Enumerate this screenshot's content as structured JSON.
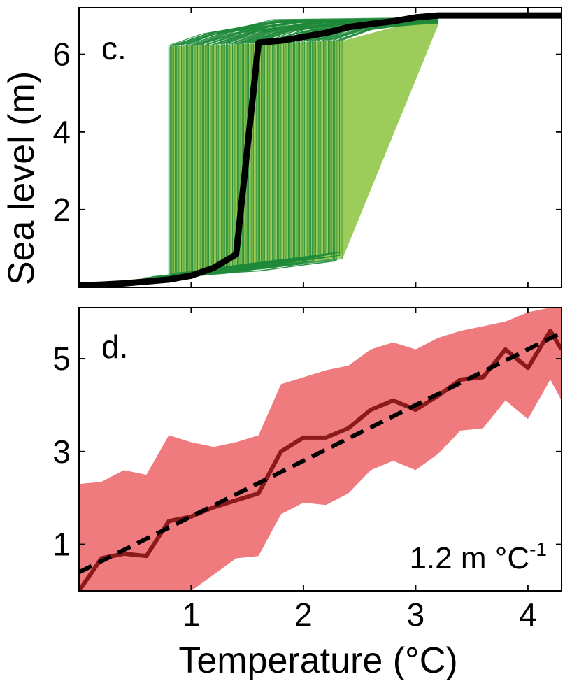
{
  "chart_data": [
    {
      "type": "line",
      "panel_label": "c.",
      "ylabel": "Sea level (m)",
      "xlabel": "",
      "xlim": [
        0,
        4.3
      ],
      "ylim": [
        0,
        7.2
      ],
      "xticks": [
        1,
        2,
        3,
        4
      ],
      "yticks": [
        2,
        4,
        6
      ],
      "ytick_labels": [
        "2",
        "4",
        "6"
      ],
      "grid": false,
      "colors": {
        "ensemble": "#1f8a3a",
        "ensemble_fill": "#9ccc5a",
        "central": "#000000"
      },
      "ensemble": {
        "transition_temperature_min": 0.8,
        "transition_temperature_max": 2.35,
        "pre_level_range": [
          0.1,
          0.95
        ],
        "post_level_start": 6.2,
        "post_level_end": 7.0
      },
      "series": [
        {
          "x": [
            0,
            0.2,
            0.4,
            0.6,
            0.8,
            1.0,
            1.2,
            1.4,
            1.6,
            1.8,
            2.0,
            2.2,
            2.4,
            2.6,
            2.8,
            3.0,
            3.2,
            3.4,
            3.6,
            3.8,
            4.0,
            4.2,
            4.3
          ],
          "y": [
            0.05,
            0.07,
            0.1,
            0.15,
            0.2,
            0.3,
            0.5,
            0.85,
            6.3,
            6.35,
            6.45,
            6.55,
            6.7,
            6.78,
            6.85,
            6.95,
            7.0,
            7.0,
            7.0,
            7.0,
            7.0,
            7.0,
            7.0
          ]
        }
      ]
    },
    {
      "type": "line",
      "panel_label": "d.",
      "ylabel": "",
      "xlabel": "Temperature (°C)",
      "xlim": [
        0,
        4.3
      ],
      "ylim": [
        0,
        6.1
      ],
      "xticks": [
        1,
        2,
        3,
        4
      ],
      "xtick_labels": [
        "1",
        "2",
        "3",
        "4"
      ],
      "yticks": [
        1,
        3,
        5
      ],
      "ytick_labels": [
        "1",
        "3",
        "5"
      ],
      "grid": false,
      "annotation": {
        "base": "1.2 m °C",
        "superscript": "-1"
      },
      "colors": {
        "band": "#f07b7f",
        "median": "#8b1a1a",
        "fit": "#000000"
      },
      "x": [
        0,
        0.2,
        0.4,
        0.6,
        0.8,
        1.0,
        1.2,
        1.4,
        1.6,
        1.8,
        2.0,
        2.2,
        2.4,
        2.6,
        2.8,
        3.0,
        3.2,
        3.4,
        3.6,
        3.8,
        4.0,
        4.2,
        4.3
      ],
      "series": [
        {
          "role": "median",
          "values": [
            0.0,
            0.7,
            0.8,
            0.75,
            1.5,
            1.6,
            1.8,
            1.95,
            2.1,
            3.0,
            3.3,
            3.3,
            3.5,
            3.9,
            4.1,
            3.9,
            4.2,
            4.55,
            4.6,
            5.2,
            4.8,
            5.6,
            5.2
          ]
        },
        {
          "role": "upper",
          "values": [
            2.3,
            2.35,
            2.6,
            2.5,
            3.35,
            3.2,
            3.1,
            3.2,
            3.35,
            4.45,
            4.6,
            4.75,
            4.85,
            5.2,
            5.35,
            5.2,
            5.45,
            5.6,
            5.7,
            5.8,
            6.0,
            6.1,
            6.1
          ]
        },
        {
          "role": "lower",
          "values": [
            0.0,
            0.0,
            0.0,
            0.0,
            0.0,
            0.0,
            0.35,
            0.7,
            0.75,
            1.65,
            1.9,
            1.85,
            2.1,
            2.6,
            2.8,
            2.6,
            2.95,
            3.45,
            3.5,
            4.1,
            3.7,
            4.55,
            4.1
          ]
        },
        {
          "role": "fit",
          "slope": 1.2,
          "intercept": 0.4
        }
      ]
    }
  ]
}
